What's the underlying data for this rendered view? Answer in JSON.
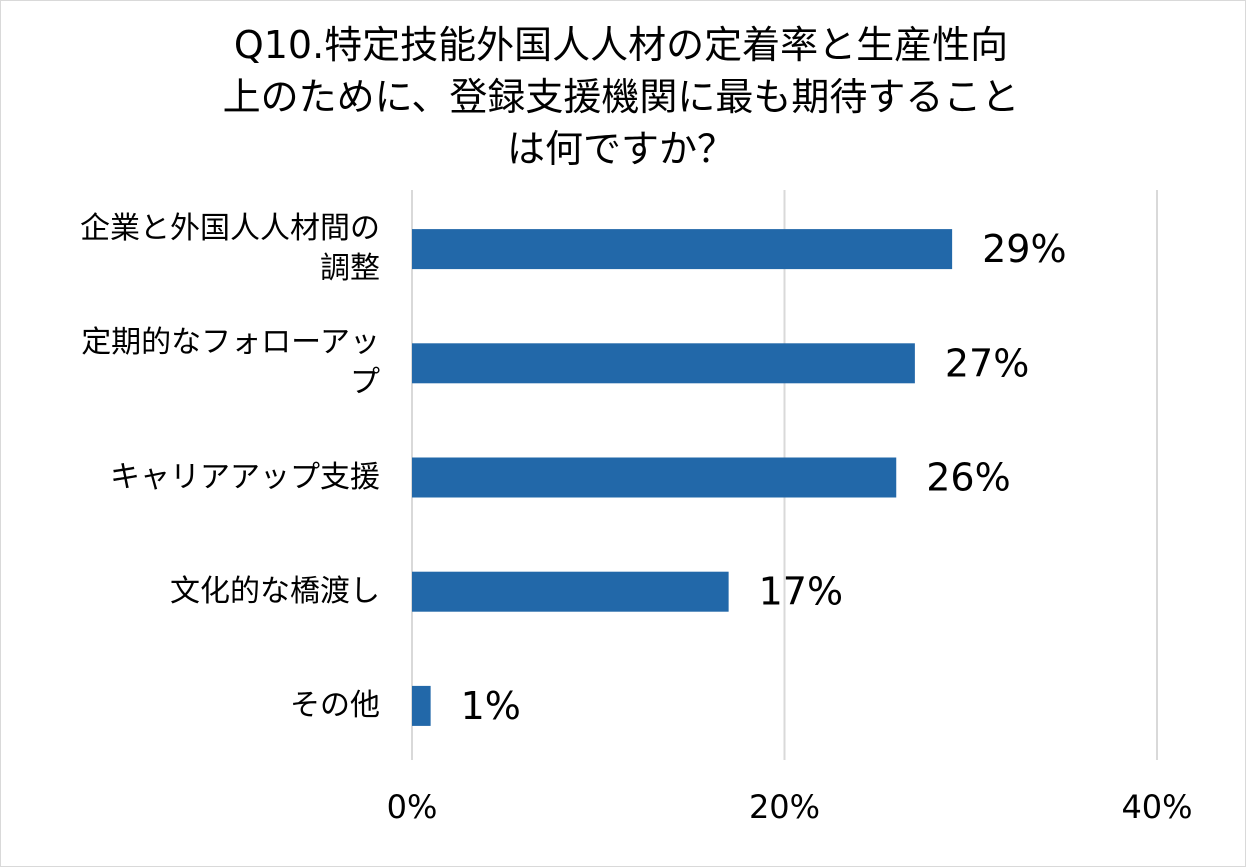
{
  "chart_data": {
    "type": "bar",
    "orientation": "horizontal",
    "title_lines": [
      "Q10.特定技能外国人人材の定着率と生産性向",
      "上のために、登録支援機関に最も期待すること",
      "は何ですか？"
    ],
    "categories": [
      [
        "企業と外国人人材間の",
        "調整"
      ],
      [
        "定期的なフォローアッ",
        "プ"
      ],
      [
        "キャリアアップ支援"
      ],
      [
        "文化的な橋渡し"
      ],
      [
        "その他"
      ]
    ],
    "values": [
      29,
      27,
      26,
      17,
      1
    ],
    "value_labels": [
      "29%",
      "27%",
      "26%",
      "17%",
      "1%"
    ],
    "xlim": [
      0,
      40
    ],
    "x_ticks": [
      "0%",
      "20%",
      "40%"
    ],
    "grid": true,
    "legend": "none",
    "bar_color": "#2268a9",
    "grid_color": "#d9d9d9"
  }
}
